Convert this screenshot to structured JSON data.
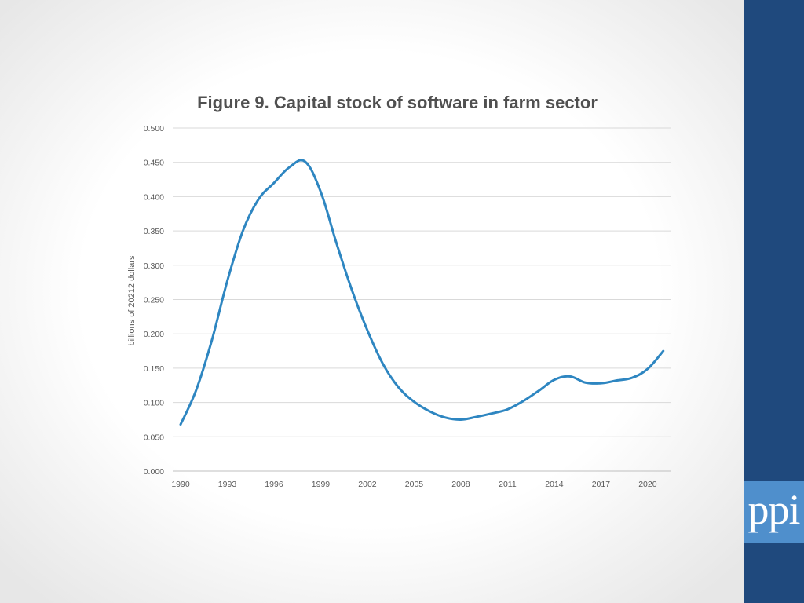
{
  "chart_data": {
    "type": "line",
    "title": "Figure 9. Capital stock of software in farm sector",
    "xlabel": "",
    "ylabel": "billions of 20212 dollars",
    "ylim": [
      0,
      0.5
    ],
    "y_ticks": [
      "0.000",
      "0.050",
      "0.100",
      "0.150",
      "0.200",
      "0.250",
      "0.300",
      "0.350",
      "0.400",
      "0.450",
      "0.500"
    ],
    "x_ticks": [
      "1990",
      "1993",
      "1996",
      "1999",
      "2002",
      "2005",
      "2008",
      "2011",
      "2014",
      "2017",
      "2020"
    ],
    "grid": true,
    "legend": "none",
    "series_color": "#2e86c1",
    "x": [
      1990,
      1991,
      1992,
      1993,
      1994,
      1995,
      1996,
      1997,
      1998,
      1999,
      2000,
      2001,
      2002,
      2003,
      2004,
      2005,
      2006,
      2007,
      2008,
      2009,
      2010,
      2011,
      2012,
      2013,
      2014,
      2015,
      2016,
      2017,
      2018,
      2019,
      2020,
      2021
    ],
    "series": [
      {
        "values": [
          0.068,
          0.118,
          0.19,
          0.277,
          0.35,
          0.396,
          0.42,
          0.443,
          0.451,
          0.407,
          0.333,
          0.264,
          0.205,
          0.156,
          0.122,
          0.101,
          0.087,
          0.078,
          0.075,
          0.079,
          0.084,
          0.09,
          0.102,
          0.117,
          0.133,
          0.138,
          0.129,
          0.128,
          0.132,
          0.136,
          0.149,
          0.175
        ]
      }
    ]
  },
  "branding": {
    "logo_text": "ppi",
    "band_color": "#1f497d",
    "logo_color": "#4f8fcc"
  }
}
